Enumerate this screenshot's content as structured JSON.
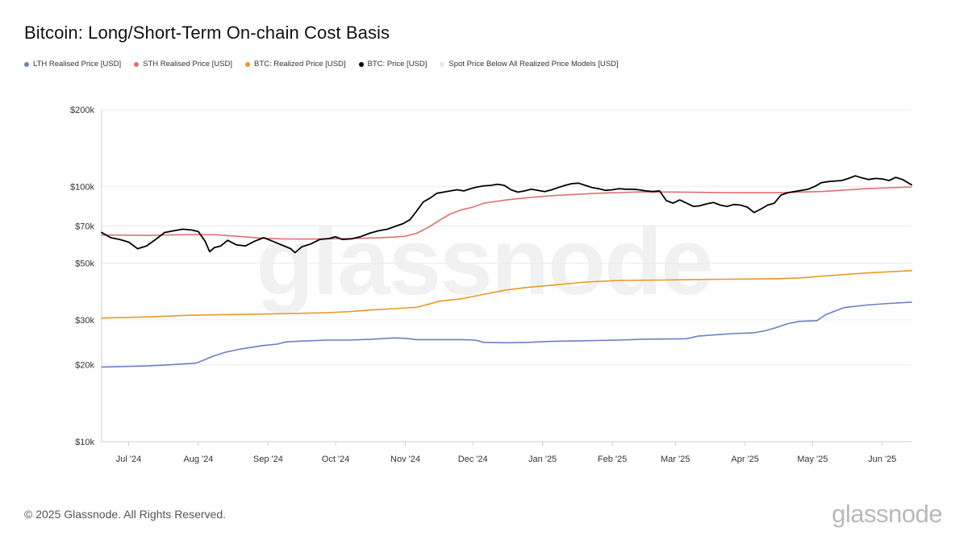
{
  "title": "Bitcoin: Long/Short-Term On-chain Cost Basis",
  "legend": [
    {
      "label": "LTH Realised Price [USD]",
      "color": "#6b7fc4"
    },
    {
      "label": "STH Realised Price [USD]",
      "color": "#e07070"
    },
    {
      "label": "BTC: Realized Price [USD]",
      "color": "#e89a2a"
    },
    {
      "label": "BTC: Price [USD]",
      "color": "#000000"
    },
    {
      "label": "Spot Price Below All Realized Price Models [USD]",
      "color": "#e6e6e6"
    }
  ],
  "watermark": "glassnode",
  "footer": {
    "copyright": "© 2025 Glassnode. All Rights Reserved.",
    "logo": "glassnode"
  },
  "chart_data": {
    "type": "line",
    "title": "Bitcoin: Long/Short-Term On-chain Cost Basis",
    "yscale": "log",
    "ylim": [
      10000,
      200000
    ],
    "xlim": [
      0,
      360
    ],
    "yticks": [
      {
        "label": "$200k",
        "value": 200000
      },
      {
        "label": "$100k",
        "value": 100000
      },
      {
        "label": "$70k",
        "value": 70000
      },
      {
        "label": "$50k",
        "value": 50000
      },
      {
        "label": "$30k",
        "value": 30000
      },
      {
        "label": "$20k",
        "value": 20000
      },
      {
        "label": "$10k",
        "value": 10000
      }
    ],
    "xticks": [
      {
        "label": "Jul '24",
        "value": 12
      },
      {
        "label": "Aug '24",
        "value": 43
      },
      {
        "label": "Sep '24",
        "value": 74
      },
      {
        "label": "Oct '24",
        "value": 104
      },
      {
        "label": "Nov '24",
        "value": 135
      },
      {
        "label": "Dec '24",
        "value": 165
      },
      {
        "label": "Jan '25",
        "value": 196
      },
      {
        "label": "Feb '25",
        "value": 227
      },
      {
        "label": "Mar '25",
        "value": 255
      },
      {
        "label": "Apr '25",
        "value": 286
      },
      {
        "label": "May '25",
        "value": 316
      },
      {
        "label": "Jun '25",
        "value": 347
      }
    ],
    "series": [
      {
        "name": "LTH Realised Price [USD]",
        "color": "#6b7fc4",
        "points": [
          [
            0,
            19600
          ],
          [
            20,
            19800
          ],
          [
            30,
            20000
          ],
          [
            42,
            20300
          ],
          [
            45,
            20800
          ],
          [
            50,
            21700
          ],
          [
            55,
            22400
          ],
          [
            62,
            23100
          ],
          [
            72,
            23800
          ],
          [
            78,
            24100
          ],
          [
            82,
            24600
          ],
          [
            90,
            24800
          ],
          [
            100,
            25000
          ],
          [
            110,
            25000
          ],
          [
            120,
            25200
          ],
          [
            130,
            25500
          ],
          [
            135,
            25400
          ],
          [
            140,
            25100
          ],
          [
            150,
            25100
          ],
          [
            160,
            25100
          ],
          [
            166,
            25000
          ],
          [
            170,
            24500
          ],
          [
            180,
            24400
          ],
          [
            190,
            24500
          ],
          [
            200,
            24700
          ],
          [
            210,
            24800
          ],
          [
            220,
            24900
          ],
          [
            230,
            25000
          ],
          [
            240,
            25200
          ],
          [
            260,
            25300
          ],
          [
            265,
            25900
          ],
          [
            280,
            26500
          ],
          [
            290,
            26700
          ],
          [
            295,
            27200
          ],
          [
            300,
            28000
          ],
          [
            305,
            29000
          ],
          [
            310,
            29600
          ],
          [
            318,
            29800
          ],
          [
            322,
            31500
          ],
          [
            330,
            33500
          ],
          [
            340,
            34300
          ],
          [
            350,
            34800
          ],
          [
            360,
            35200
          ]
        ]
      },
      {
        "name": "STH Realised Price [USD]",
        "color": "#e07070",
        "points": [
          [
            0,
            64500
          ],
          [
            20,
            64300
          ],
          [
            40,
            64800
          ],
          [
            50,
            64700
          ],
          [
            60,
            63800
          ],
          [
            70,
            62800
          ],
          [
            80,
            62300
          ],
          [
            95,
            62200
          ],
          [
            110,
            62500
          ],
          [
            120,
            62800
          ],
          [
            130,
            63300
          ],
          [
            135,
            63800
          ],
          [
            140,
            65500
          ],
          [
            145,
            69000
          ],
          [
            150,
            73500
          ],
          [
            155,
            78000
          ],
          [
            160,
            81000
          ],
          [
            165,
            83000
          ],
          [
            170,
            86000
          ],
          [
            180,
            88500
          ],
          [
            190,
            90500
          ],
          [
            200,
            92000
          ],
          [
            220,
            94000
          ],
          [
            240,
            95200
          ],
          [
            260,
            95000
          ],
          [
            280,
            94500
          ],
          [
            300,
            94500
          ],
          [
            320,
            95500
          ],
          [
            340,
            98000
          ],
          [
            360,
            99500
          ]
        ]
      },
      {
        "name": "BTC: Realized Price [USD]",
        "color": "#e89a2a",
        "points": [
          [
            0,
            30500
          ],
          [
            20,
            30800
          ],
          [
            40,
            31300
          ],
          [
            60,
            31500
          ],
          [
            80,
            31700
          ],
          [
            100,
            32000
          ],
          [
            110,
            32300
          ],
          [
            120,
            32800
          ],
          [
            130,
            33200
          ],
          [
            140,
            33600
          ],
          [
            145,
            34500
          ],
          [
            150,
            35500
          ],
          [
            160,
            36300
          ],
          [
            170,
            37800
          ],
          [
            180,
            39300
          ],
          [
            190,
            40300
          ],
          [
            200,
            41000
          ],
          [
            215,
            42200
          ],
          [
            230,
            42800
          ],
          [
            250,
            43000
          ],
          [
            260,
            43100
          ],
          [
            280,
            43300
          ],
          [
            300,
            43500
          ],
          [
            310,
            43800
          ],
          [
            320,
            44500
          ],
          [
            340,
            45800
          ],
          [
            360,
            46800
          ]
        ]
      },
      {
        "name": "BTC: Price [USD]",
        "color": "#000000",
        "points": [
          [
            0,
            66000
          ],
          [
            4,
            63000
          ],
          [
            8,
            62000
          ],
          [
            12,
            60500
          ],
          [
            16,
            57000
          ],
          [
            20,
            58500
          ],
          [
            24,
            62000
          ],
          [
            28,
            66000
          ],
          [
            32,
            67000
          ],
          [
            36,
            68000
          ],
          [
            40,
            67500
          ],
          [
            43,
            66500
          ],
          [
            46,
            61000
          ],
          [
            48,
            55500
          ],
          [
            50,
            57500
          ],
          [
            53,
            58500
          ],
          [
            56,
            61500
          ],
          [
            60,
            59000
          ],
          [
            64,
            58500
          ],
          [
            68,
            61000
          ],
          [
            72,
            63000
          ],
          [
            76,
            61000
          ],
          [
            80,
            59000
          ],
          [
            84,
            57000
          ],
          [
            86,
            55000
          ],
          [
            89,
            58000
          ],
          [
            93,
            59500
          ],
          [
            97,
            62000
          ],
          [
            101,
            62500
          ],
          [
            104,
            63500
          ],
          [
            107,
            62000
          ],
          [
            111,
            62300
          ],
          [
            115,
            63500
          ],
          [
            119,
            65500
          ],
          [
            123,
            67000
          ],
          [
            127,
            68000
          ],
          [
            131,
            70000
          ],
          [
            134,
            71500
          ],
          [
            137,
            74000
          ],
          [
            140,
            80000
          ],
          [
            143,
            87000
          ],
          [
            146,
            90000
          ],
          [
            149,
            94000
          ],
          [
            152,
            95000
          ],
          [
            155,
            96000
          ],
          [
            158,
            97000
          ],
          [
            161,
            96000
          ],
          [
            164,
            98000
          ],
          [
            167,
            99500
          ],
          [
            170,
            100500
          ],
          [
            173,
            101000
          ],
          [
            176,
            102000
          ],
          [
            179,
            101000
          ],
          [
            182,
            97000
          ],
          [
            185,
            95000
          ],
          [
            188,
            96000
          ],
          [
            191,
            97500
          ],
          [
            194,
            96500
          ],
          [
            197,
            95500
          ],
          [
            200,
            97000
          ],
          [
            203,
            99000
          ],
          [
            206,
            101000
          ],
          [
            209,
            102500
          ],
          [
            212,
            103000
          ],
          [
            215,
            101000
          ],
          [
            218,
            99000
          ],
          [
            221,
            98000
          ],
          [
            224,
            96500
          ],
          [
            227,
            97000
          ],
          [
            230,
            98000
          ],
          [
            233,
            97500
          ],
          [
            236,
            97500
          ],
          [
            239,
            97000
          ],
          [
            242,
            96000
          ],
          [
            245,
            95500
          ],
          [
            248,
            96000
          ],
          [
            251,
            88000
          ],
          [
            254,
            86000
          ],
          [
            257,
            88500
          ],
          [
            260,
            86000
          ],
          [
            263,
            83500
          ],
          [
            266,
            84000
          ],
          [
            269,
            85500
          ],
          [
            272,
            86500
          ],
          [
            275,
            84500
          ],
          [
            278,
            83500
          ],
          [
            281,
            85000
          ],
          [
            284,
            84500
          ],
          [
            287,
            83000
          ],
          [
            290,
            79000
          ],
          [
            293,
            81500
          ],
          [
            296,
            84500
          ],
          [
            299,
            86000
          ],
          [
            302,
            92500
          ],
          [
            305,
            94500
          ],
          [
            308,
            95500
          ],
          [
            311,
            96500
          ],
          [
            314,
            97500
          ],
          [
            317,
            100000
          ],
          [
            320,
            103500
          ],
          [
            323,
            104500
          ],
          [
            326,
            105000
          ],
          [
            329,
            105500
          ],
          [
            332,
            107500
          ],
          [
            335,
            110000
          ],
          [
            338,
            108000
          ],
          [
            341,
            106500
          ],
          [
            344,
            107500
          ],
          [
            347,
            107000
          ],
          [
            350,
            105500
          ],
          [
            353,
            108500
          ],
          [
            356,
            106500
          ],
          [
            360,
            101500
          ]
        ]
      }
    ]
  }
}
